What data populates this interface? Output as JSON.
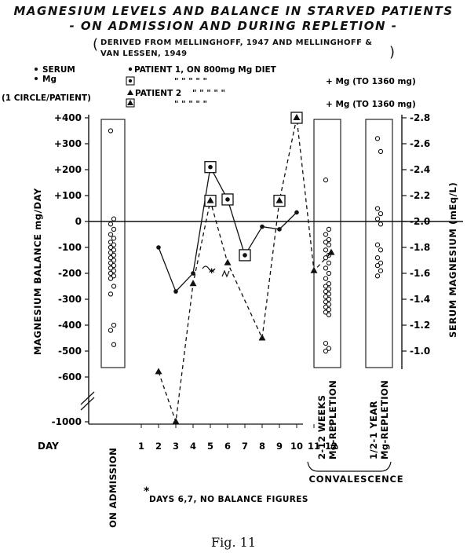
{
  "chart_data": {
    "type": "line",
    "title": "MAGNESIUM LEVELS AND BALANCE IN STARVED PATIENTS",
    "subtitle": "- ON ADMISSION AND DURING REPLETION -",
    "source": "DERIVED FROM MELLINGHOFF, 1947 AND MELLINGHOFF & VAN LESSEN, 1949",
    "ylabel": "MAGNESIUM BALANCE mg/DAY",
    "y2label": "SERUM MAGNESIUM (mEq/L)",
    "xlabel": "DAY",
    "y_ticks": [
      "+400",
      "+300",
      "+200",
      "+100",
      "0",
      "-100",
      "-200",
      "-300",
      "-400",
      "-500",
      "-600",
      "-1000"
    ],
    "y2_ticks": [
      "2.8",
      "2.6",
      "2.4",
      "2.2",
      "2.0",
      "1.8",
      "1.6",
      "1.4",
      "1.2",
      "1.0"
    ],
    "days": [
      "1",
      "2",
      "3",
      "4",
      "5",
      "6",
      "7",
      "8",
      "9",
      "10",
      "11",
      "12"
    ],
    "ylim": [
      -1000,
      400
    ],
    "y2lim": [
      1.0,
      2.8
    ],
    "legend": {
      "serum_key": "SERUM",
      "mg_key": "Mg",
      "circle_key": "(1 CIRCLE/PATIENT)",
      "p1": "PATIENT 1, ON 800mg Mg DIET",
      "p2": "PATIENT 2",
      "ditto": "\"      \"      \"      \"      \"",
      "suffix": "+ Mg (TO 1360 mg)"
    },
    "series": [
      {
        "name": "PATIENT 1, ON 800mg Mg DIET",
        "style": "solid",
        "marker": "dot",
        "points": [
          [
            2,
            -100
          ],
          [
            3,
            -270
          ],
          [
            4,
            -200
          ],
          [
            5,
            210
          ],
          [
            6,
            85
          ],
          [
            7,
            -130
          ],
          [
            8,
            -20
          ],
          [
            9,
            -30
          ],
          [
            10,
            35
          ]
        ],
        "serum_marked_days": [
          5,
          6,
          7
        ]
      },
      {
        "name": "PATIENT 2",
        "style": "dashed",
        "marker": "triangle",
        "points": [
          [
            2,
            -580
          ],
          [
            3,
            -990
          ],
          [
            4,
            -240
          ],
          [
            5,
            80
          ],
          [
            6,
            -160
          ],
          [
            8,
            -450
          ],
          [
            9,
            80
          ],
          [
            10,
            400
          ],
          [
            11,
            -190
          ],
          [
            12,
            -120
          ]
        ],
        "serum_marked_days": [
          5,
          9,
          10
        ]
      }
    ],
    "serum_admission": [
      2.7,
      2.02,
      1.98,
      1.94,
      1.9,
      1.87,
      1.84,
      1.82,
      1.8,
      1.78,
      1.76,
      1.74,
      1.72,
      1.7,
      1.68,
      1.66,
      1.64,
      1.62,
      1.6,
      1.58,
      1.56,
      1.5,
      1.44,
      1.2,
      1.16,
      1.05
    ],
    "serum_convalescence_2_12_weeks": [
      2.32,
      1.94,
      1.9,
      1.86,
      1.84,
      1.82,
      1.78,
      1.74,
      1.72,
      1.68,
      1.64,
      1.6,
      1.56,
      1.52,
      1.5,
      1.48,
      1.46,
      1.44,
      1.42,
      1.4,
      1.38,
      1.36,
      1.34,
      1.32,
      1.3,
      1.28,
      1.06,
      1.02,
      1.0
    ],
    "serum_convalescence_half_1_year": [
      2.64,
      2.54,
      2.1,
      2.06,
      2.02,
      1.98,
      1.82,
      1.78,
      1.72,
      1.68,
      1.66,
      1.62,
      1.58
    ],
    "x_extra_labels": {
      "admission": "ON ADMISSION",
      "weeks": [
        "2-12 WEEKS",
        "Mg-REPLETION"
      ],
      "year": [
        "1/2-1 YEAR",
        "Mg-REPLETION"
      ],
      "convalescence": "CONVALESCENCE"
    },
    "footnote_star": "*",
    "footnote": "DAYS 6,7, NO BALANCE FIGURES"
  },
  "figure_caption": "Fig. 11"
}
